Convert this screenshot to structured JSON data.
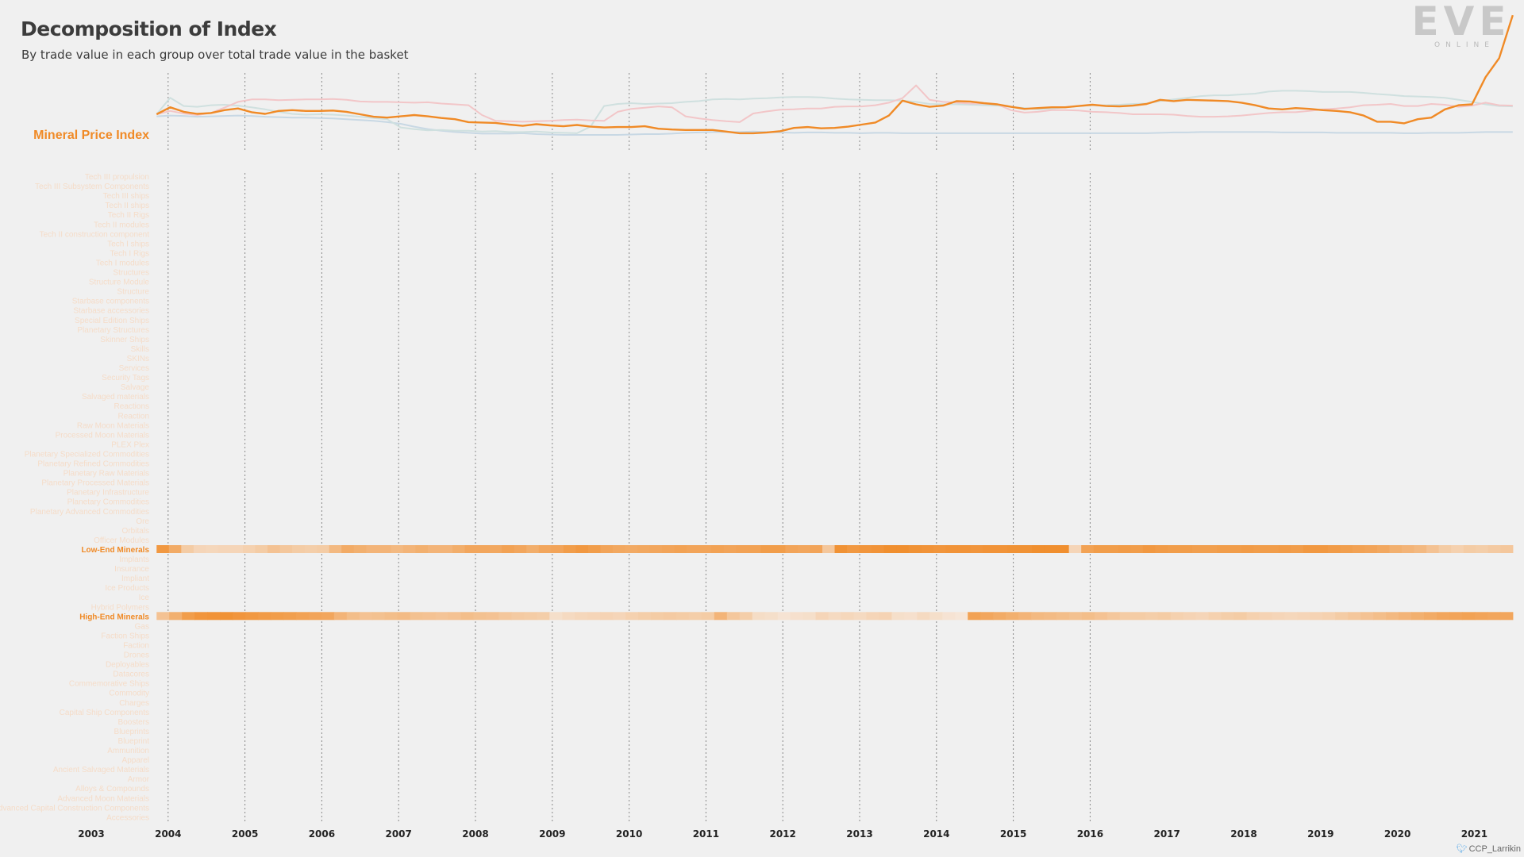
{
  "header": {
    "title": "Decomposition of Index",
    "subtitle": "By trade value in each group over total trade value in the basket"
  },
  "logo": {
    "main": "EVE",
    "sub": "ONLINE"
  },
  "credit": {
    "text": "CCP_Larrikin",
    "icon": "twitter-bird-icon"
  },
  "colors": {
    "highlight": "#f08a26",
    "pink": "#f2c6c8",
    "teal": "#cfe0df",
    "blue": "#c8d8e4",
    "faint_label": "#f5dcc8",
    "grid": "#888888"
  },
  "chart_data": [
    {
      "type": "line",
      "highlight_label": "Mineral Price Index",
      "x_start": 2003.85,
      "x_end": 2021.5,
      "xlim": [
        2003,
        2021.5
      ],
      "series": [
        {
          "key": "pink",
          "values": [
            0.5,
            0.58,
            0.52,
            0.48,
            0.53,
            0.66,
            0.8,
            0.86,
            0.86,
            0.84,
            0.85,
            0.86,
            0.86,
            0.87,
            0.85,
            0.81,
            0.8,
            0.8,
            0.79,
            0.78,
            0.79,
            0.76,
            0.74,
            0.72,
            0.48,
            0.34,
            0.33,
            0.32,
            0.33,
            0.34,
            0.36,
            0.37,
            0.35,
            0.34,
            0.56,
            0.63,
            0.66,
            0.69,
            0.67,
            0.45,
            0.4,
            0.36,
            0.33,
            0.31,
            0.52,
            0.57,
            0.61,
            0.62,
            0.64,
            0.64,
            0.68,
            0.69,
            0.69,
            0.72,
            0.78,
            0.89,
            1.2,
            0.85,
            0.8,
            0.78,
            0.76,
            0.76,
            0.74,
            0.6,
            0.54,
            0.56,
            0.6,
            0.6,
            0.59,
            0.56,
            0.55,
            0.53,
            0.5,
            0.5,
            0.5,
            0.49,
            0.46,
            0.44,
            0.44,
            0.45,
            0.47,
            0.5,
            0.53,
            0.55,
            0.55,
            0.58,
            0.62,
            0.64,
            0.67,
            0.72,
            0.73,
            0.75,
            0.7,
            0.7,
            0.75,
            0.73,
            0.68,
            0.71,
            0.78,
            0.72,
            0.71
          ]
        },
        {
          "key": "teal",
          "values": [
            0.5,
            0.9,
            0.7,
            0.68,
            0.72,
            0.73,
            0.71,
            0.67,
            0.62,
            0.56,
            0.51,
            0.49,
            0.5,
            0.49,
            0.47,
            0.44,
            0.41,
            0.38,
            0.18,
            0.14,
            0.11,
            0.12,
            0.1,
            0.1,
            0.08,
            0.09,
            0.07,
            0.07,
            0.08,
            0.06,
            0.05,
            0.04,
            0.2,
            0.7,
            0.75,
            0.77,
            0.75,
            0.76,
            0.77,
            0.8,
            0.82,
            0.86,
            0.87,
            0.86,
            0.88,
            0.89,
            0.91,
            0.92,
            0.92,
            0.91,
            0.88,
            0.86,
            0.85,
            0.84,
            0.84,
            0.83,
            0.8,
            0.75,
            0.74,
            0.74,
            0.73,
            0.72,
            0.71,
            0.68,
            0.65,
            0.62,
            0.64,
            0.67,
            0.7,
            0.72,
            0.72,
            0.73,
            0.75,
            0.76,
            0.82,
            0.86,
            0.9,
            0.94,
            0.96,
            0.96,
            0.98,
            1.0,
            1.05,
            1.07,
            1.07,
            1.06,
            1.04,
            1.04,
            1.04,
            1.02,
            0.99,
            0.97,
            0.94,
            0.93,
            0.92,
            0.9,
            0.85,
            0.8,
            0.74,
            0.7,
            0.69
          ]
        },
        {
          "key": "blue",
          "values": [
            0.45,
            0.47,
            0.46,
            0.44,
            0.45,
            0.46,
            0.47,
            0.46,
            0.44,
            0.43,
            0.42,
            0.42,
            0.41,
            0.4,
            0.38,
            0.36,
            0.34,
            0.31,
            0.27,
            0.2,
            0.14,
            0.1,
            0.07,
            0.05,
            0.03,
            0.03,
            0.03,
            0.04,
            0.02,
            0.01,
            0.0,
            0.0,
            0.0,
            0.0,
            0.0,
            0.01,
            0.02,
            0.02,
            0.03,
            0.05,
            0.06,
            0.07,
            0.07,
            0.07,
            0.08,
            0.07,
            0.06,
            0.05,
            0.06,
            0.06,
            0.05,
            0.05,
            0.04,
            0.05,
            0.05,
            0.04,
            0.04,
            0.04,
            0.04,
            0.04,
            0.04,
            0.04,
            0.04,
            0.04,
            0.04,
            0.04,
            0.04,
            0.04,
            0.04,
            0.04,
            0.04,
            0.04,
            0.04,
            0.04,
            0.05,
            0.06,
            0.06,
            0.07,
            0.07,
            0.07,
            0.07,
            0.07,
            0.07,
            0.06,
            0.06,
            0.06,
            0.06,
            0.05,
            0.05,
            0.05,
            0.05,
            0.05,
            0.04,
            0.04,
            0.05,
            0.05,
            0.05,
            0.06,
            0.07,
            0.07,
            0.07
          ]
        },
        {
          "key": "orange",
          "highlight": true,
          "values": [
            0.5,
            0.67,
            0.56,
            0.51,
            0.53,
            0.6,
            0.64,
            0.55,
            0.51,
            0.58,
            0.6,
            0.58,
            0.58,
            0.59,
            0.56,
            0.5,
            0.44,
            0.42,
            0.45,
            0.48,
            0.45,
            0.41,
            0.38,
            0.31,
            0.3,
            0.29,
            0.25,
            0.22,
            0.26,
            0.23,
            0.21,
            0.24,
            0.2,
            0.18,
            0.19,
            0.19,
            0.21,
            0.15,
            0.13,
            0.12,
            0.12,
            0.12,
            0.08,
            0.04,
            0.04,
            0.06,
            0.09,
            0.17,
            0.19,
            0.16,
            0.17,
            0.2,
            0.25,
            0.3,
            0.47,
            0.83,
            0.74,
            0.68,
            0.71,
            0.82,
            0.81,
            0.77,
            0.74,
            0.68,
            0.63,
            0.65,
            0.67,
            0.67,
            0.7,
            0.73,
            0.7,
            0.69,
            0.71,
            0.75,
            0.85,
            0.82,
            0.85,
            0.84,
            0.83,
            0.82,
            0.78,
            0.72,
            0.64,
            0.62,
            0.65,
            0.63,
            0.6,
            0.58,
            0.55,
            0.47,
            0.32,
            0.32,
            0.28,
            0.38,
            0.42,
            0.62,
            0.72,
            0.74,
            1.4,
            1.86,
            2.9
          ]
        }
      ]
    },
    {
      "type": "heatmap",
      "x_ticks": [
        "2003",
        "2004",
        "2005",
        "2006",
        "2007",
        "2008",
        "2009",
        "2010",
        "2011",
        "2012",
        "2013",
        "2014",
        "2015",
        "2016",
        "2017",
        "2018",
        "2019",
        "2020",
        "2021"
      ],
      "x_start": 2003.85,
      "x_end": 2021.5,
      "xlim": [
        2003,
        2021.5
      ],
      "categories": [
        "Tech III propulsion",
        "Tech III Subsystem Components",
        "Tech III ships",
        "Tech II ships",
        "Tech II Rigs",
        "Tech II modules",
        "Tech II construction component",
        "Tech I ships",
        "Tech I Rigs",
        "Tech I modules",
        "Structures",
        "Structure Module",
        "Structure",
        "Starbase components",
        "Starbase accessories",
        "Special Edition Ships",
        "Planetary Structures",
        "Skinner Ships",
        "Skills",
        "SKINs",
        "Services",
        "Security Tags",
        "Salvage",
        "Salvaged materials",
        "Reactions",
        "Reaction",
        "Raw Moon Materials",
        "Processed Moon Materials",
        "PLEX Plex",
        "Planetary Specialized Commodities",
        "Planetary Refined Commodities",
        "Planetary Raw Materials",
        "Planetary Processed Materials",
        "Planetary Infrastructure",
        "Planetary Commodities",
        "Planetary Advanced Commodities",
        "Ore",
        "Orbitals",
        "Officer Modules",
        "Low-End Minerals",
        "Implants",
        "Insurance",
        "Impliant",
        "Ice Products",
        "Ice",
        "Hybrid Polymers",
        "High-End Minerals",
        "Gas",
        "Faction Ships",
        "Faction",
        "Drones",
        "Deployables",
        "Datacores",
        "Commemorative Ships",
        "Commodity",
        "Charges",
        "Capital Ship Components",
        "Boosters",
        "Blueprints",
        "Blueprint",
        "Ammunition",
        "Apparel",
        "Ancient Salvaged Materials",
        "Armor",
        "Alloys & Compounds",
        "Advanced Moon Materials",
        "Advanced Capital Construction Components",
        "Accessories"
      ],
      "highlighted_rows": [
        {
          "label": "Low-End Minerals",
          "values": [
            0.85,
            0.65,
            0.3,
            0.2,
            0.18,
            0.2,
            0.2,
            0.25,
            0.3,
            0.4,
            0.35,
            0.3,
            0.28,
            0.3,
            0.5,
            0.65,
            0.6,
            0.55,
            0.55,
            0.5,
            0.55,
            0.6,
            0.55,
            0.55,
            0.62,
            0.7,
            0.7,
            0.68,
            0.75,
            0.7,
            0.62,
            0.7,
            0.72,
            0.8,
            0.85,
            0.8,
            0.72,
            0.68,
            0.66,
            0.68,
            0.7,
            0.72,
            0.75,
            0.72,
            0.72,
            0.75,
            0.72,
            0.74,
            0.75,
            0.8,
            0.8,
            0.72,
            0.7,
            0.72,
            0.35,
            0.92,
            0.85,
            0.88,
            0.9,
            0.95,
            0.95,
            0.92,
            0.9,
            0.88,
            0.9,
            0.9,
            0.88,
            0.9,
            0.9,
            0.92,
            0.92,
            0.95,
            0.95,
            0.95,
            0.2,
            0.75,
            0.8,
            0.8,
            0.82,
            0.8,
            0.85,
            0.82,
            0.8,
            0.8,
            0.78,
            0.78,
            0.8,
            0.8,
            0.82,
            0.8,
            0.8,
            0.82,
            0.8,
            0.85,
            0.85,
            0.82,
            0.78,
            0.75,
            0.72,
            0.68,
            0.6,
            0.55,
            0.5,
            0.4,
            0.3,
            0.25,
            0.3,
            0.28,
            0.32,
            0.35
          ]
        },
        {
          "label": "High-End Minerals",
          "values": [
            0.4,
            0.6,
            0.8,
            0.88,
            0.9,
            0.92,
            0.88,
            0.85,
            0.82,
            0.8,
            0.78,
            0.75,
            0.72,
            0.7,
            0.55,
            0.45,
            0.4,
            0.42,
            0.45,
            0.48,
            0.42,
            0.4,
            0.38,
            0.4,
            0.45,
            0.42,
            0.4,
            0.35,
            0.32,
            0.3,
            0.28,
            0.1,
            0.15,
            0.18,
            0.2,
            0.22,
            0.2,
            0.25,
            0.28,
            0.3,
            0.32,
            0.3,
            0.28,
            0.3,
            0.55,
            0.35,
            0.28,
            0.12,
            0.1,
            0.05,
            0.08,
            0.1,
            0.2,
            0.15,
            0.18,
            0.15,
            0.2,
            0.22,
            0.1,
            0.08,
            0.15,
            0.1,
            0.05,
            0.02,
            0.75,
            0.7,
            0.65,
            0.6,
            0.55,
            0.5,
            0.48,
            0.45,
            0.42,
            0.45,
            0.4,
            0.35,
            0.3,
            0.3,
            0.28,
            0.3,
            0.25,
            0.22,
            0.2,
            0.25,
            0.28,
            0.3,
            0.25,
            0.22,
            0.2,
            0.18,
            0.2,
            0.22,
            0.25,
            0.3,
            0.35,
            0.4,
            0.45,
            0.5,
            0.55,
            0.6,
            0.65,
            0.7,
            0.72,
            0.75,
            0.72,
            0.7,
            0.7
          ]
        }
      ]
    }
  ]
}
